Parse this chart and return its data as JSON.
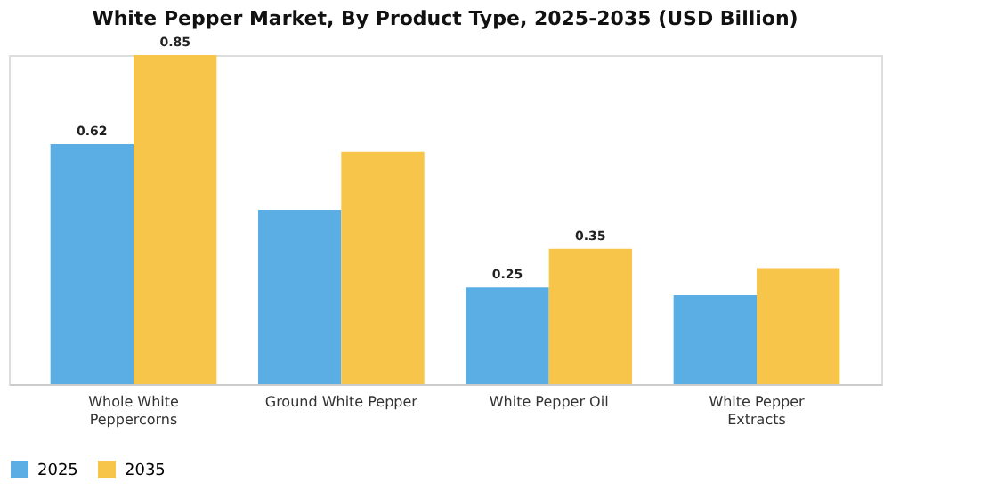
{
  "chart_data": {
    "type": "bar",
    "title": "White Pepper Market, By Product Type, 2025-2035 (USD Billion)",
    "categories": [
      "Whole White Peppercorns",
      "Ground White Pepper",
      "White Pepper Oil",
      "White Pepper Extracts"
    ],
    "series": [
      {
        "name": "2025",
        "color": "#5aaee3",
        "values": [
          0.62,
          0.45,
          0.25,
          0.23
        ],
        "value_labels": [
          "0.62",
          null,
          "0.25",
          null
        ]
      },
      {
        "name": "2035",
        "color": "#f7c54a",
        "values": [
          0.85,
          0.6,
          0.35,
          0.3
        ],
        "value_labels": [
          "0.85",
          null,
          "0.35",
          null
        ]
      }
    ],
    "legend": "bottom",
    "grid": false,
    "tick_labels": "x"
  }
}
